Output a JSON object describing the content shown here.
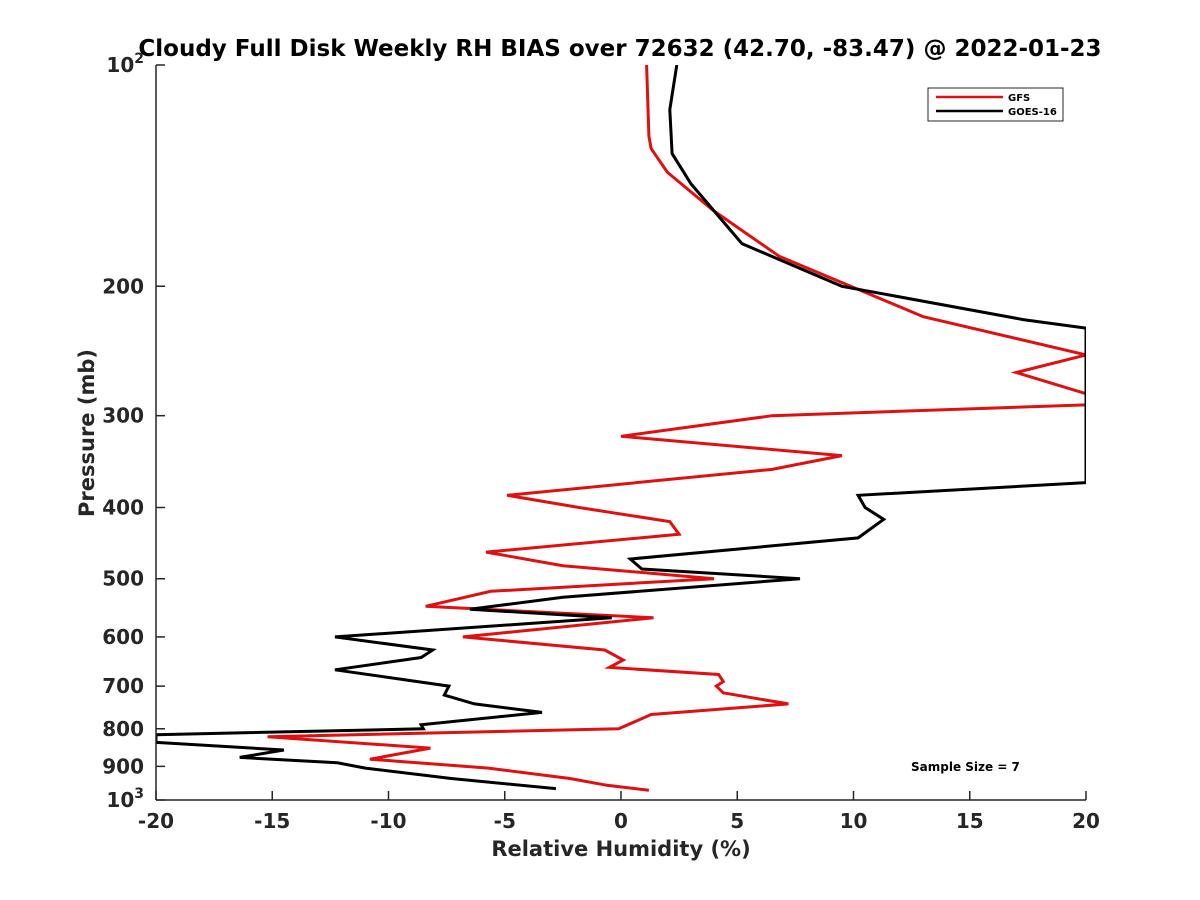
{
  "chart_data": {
    "type": "line",
    "title": "Cloudy Full Disk Weekly RH BIAS over 72632 (42.70, -83.47) @ 2022-01-23",
    "xlabel": "Relative Humidity (%)",
    "ylabel": "Pressure (mb)",
    "xlim": [
      -20,
      20
    ],
    "ylim": [
      1000,
      100
    ],
    "yscale": "log",
    "xticks": [
      -20,
      -15,
      -10,
      -5,
      0,
      5,
      10,
      15,
      20
    ],
    "xtick_labels": [
      "-20",
      "-15",
      "-10",
      "-5",
      "0",
      "5",
      "10",
      "15",
      "20"
    ],
    "yticks": [
      100,
      200,
      300,
      400,
      500,
      600,
      700,
      800,
      900,
      1000
    ],
    "ytick_labels": [
      {
        "base": "10",
        "exp": "2"
      },
      {
        "base": "200",
        "exp": ""
      },
      {
        "base": "300",
        "exp": ""
      },
      {
        "base": "400",
        "exp": ""
      },
      {
        "base": "500",
        "exp": ""
      },
      {
        "base": "600",
        "exp": ""
      },
      {
        "base": "700",
        "exp": ""
      },
      {
        "base": "800",
        "exp": ""
      },
      {
        "base": "900",
        "exp": ""
      },
      {
        "base": "10",
        "exp": "3"
      }
    ],
    "legend_position": "top-right",
    "annotation": "Sample Size = 7",
    "series": [
      {
        "name": "GFS",
        "color": "#e01010",
        "points": [
          [
            1.1,
            100
          ],
          [
            1.2,
            125
          ],
          [
            1.3,
            130
          ],
          [
            2.0,
            140
          ],
          [
            4.0,
            158
          ],
          [
            6.8,
            182
          ],
          [
            13,
            220
          ],
          [
            20,
            248
          ],
          [
            17,
            262
          ],
          [
            20,
            280
          ],
          [
            20,
            290
          ],
          [
            6.5,
            300
          ],
          [
            0,
            320
          ],
          [
            9.5,
            340
          ],
          [
            6.5,
            355
          ],
          [
            -4.9,
            385
          ],
          [
            -1.8,
            400
          ],
          [
            2.1,
            418
          ],
          [
            2.5,
            435
          ],
          [
            -5.8,
            460
          ],
          [
            -2.5,
            480
          ],
          [
            4,
            500
          ],
          [
            -5.6,
            520
          ],
          [
            -8.4,
            545
          ],
          [
            1.4,
            565
          ],
          [
            -6.8,
            600
          ],
          [
            -0.7,
            625
          ],
          [
            0.1,
            645
          ],
          [
            -0.5,
            660
          ],
          [
            4.2,
            675
          ],
          [
            4.4,
            690
          ],
          [
            4.1,
            700
          ],
          [
            4.4,
            715
          ],
          [
            7.2,
            740
          ],
          [
            1.3,
            765
          ],
          [
            -0.1,
            800
          ],
          [
            -15.2,
            820
          ],
          [
            -8.2,
            850
          ],
          [
            -10.8,
            880
          ],
          [
            -5.7,
            905
          ],
          [
            -2.2,
            935
          ],
          [
            -0.6,
            955
          ],
          [
            1.2,
            970
          ]
        ]
      },
      {
        "name": "GOES-16",
        "color": "#000000",
        "points": [
          [
            2.4,
            100
          ],
          [
            2.1,
            115
          ],
          [
            2.2,
            132
          ],
          [
            3.0,
            145
          ],
          [
            5.2,
            175
          ],
          [
            9.5,
            200
          ],
          [
            17.3,
            222
          ],
          [
            20,
            228
          ],
          [
            20,
            370
          ],
          [
            10.2,
            385
          ],
          [
            10.5,
            400
          ],
          [
            11.3,
            415
          ],
          [
            10.2,
            440
          ],
          [
            0.4,
            470
          ],
          [
            0.9,
            485
          ],
          [
            7.7,
            500
          ],
          [
            -2.5,
            530
          ],
          [
            -6.5,
            550
          ],
          [
            -0.4,
            565
          ],
          [
            -12.3,
            600
          ],
          [
            -8.1,
            625
          ],
          [
            -8.6,
            640
          ],
          [
            -12.3,
            665
          ],
          [
            -7.4,
            700
          ],
          [
            -7.6,
            720
          ],
          [
            -6.3,
            740
          ],
          [
            -3.4,
            760
          ],
          [
            -8.6,
            790
          ],
          [
            -8.5,
            800
          ],
          [
            -20,
            815
          ],
          [
            -20,
            835
          ],
          [
            -14.5,
            855
          ],
          [
            -16.4,
            875
          ],
          [
            -12.2,
            890
          ],
          [
            -11,
            905
          ],
          [
            -7.3,
            935
          ],
          [
            -2.8,
            965
          ]
        ]
      }
    ]
  }
}
